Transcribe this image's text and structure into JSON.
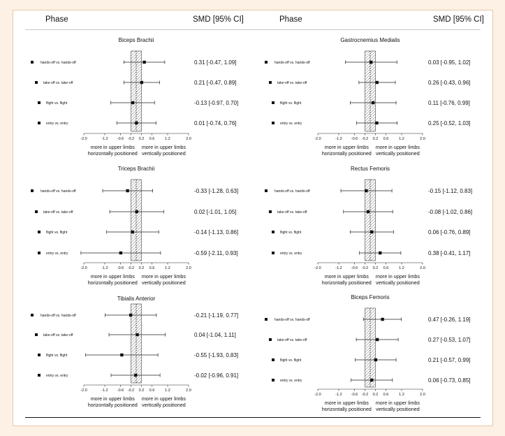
{
  "header": {
    "left_phase": "Phase",
    "left_smd": "SMD [95% CI]",
    "right_phase": "Phase",
    "right_smd": "SMD [95% CI]"
  },
  "axis": {
    "ticks": [
      "-2.0",
      "-1.2",
      "-0.6",
      "-0.2",
      "0.2",
      "0.6",
      "1.2",
      "2.0"
    ],
    "left_label": [
      "more in upper limbs",
      "horizontally positioned"
    ],
    "right_label": [
      "more in upper limbs",
      "vertically positioned"
    ]
  },
  "chart_data": [
    {
      "type": "forest",
      "title": "Biceps Brachii",
      "rows": [
        {
          "label": "hands-off vs. hands-off",
          "smd": 0.31,
          "lo": -0.47,
          "hi": 1.09,
          "text": "0.31 [-0.47, 1.09]"
        },
        {
          "label": "take-off vs. take-off",
          "smd": 0.21,
          "lo": -0.47,
          "hi": 0.89,
          "text": "0.21 [-0.47, 0.89]"
        },
        {
          "label": "flight vs. flight",
          "smd": -0.13,
          "lo": -0.97,
          "hi": 0.7,
          "text": "-0.13 [-0.97, 0.70]"
        },
        {
          "label": "entry vs. entry",
          "smd": 0.01,
          "lo": -0.74,
          "hi": 0.76,
          "text": "0.01 [-0.74, 0.76]"
        }
      ]
    },
    {
      "type": "forest",
      "title": "Gastrocnemius Medialis",
      "rows": [
        {
          "label": "hands-off vs. hands-off",
          "smd": 0.03,
          "lo": -0.95,
          "hi": 1.02,
          "text": "0.03 [-0.95, 1.02]"
        },
        {
          "label": "take-off vs. take-off",
          "smd": 0.26,
          "lo": -0.43,
          "hi": 0.96,
          "text": "0.26 [-0.43, 0.96]"
        },
        {
          "label": "flight vs. flight",
          "smd": 0.11,
          "lo": -0.76,
          "hi": 0.99,
          "text": "0.11 [-0.76, 0.99]"
        },
        {
          "label": "entry vs. entry",
          "smd": 0.25,
          "lo": -0.52,
          "hi": 1.03,
          "text": "0.25 [-0.52, 1.03]"
        }
      ]
    },
    {
      "type": "forest",
      "title": "Triceps Brachii",
      "rows": [
        {
          "label": "hands-off vs. hands-off",
          "smd": -0.33,
          "lo": -1.28,
          "hi": 0.63,
          "text": "-0.33 [-1.28, 0.63]"
        },
        {
          "label": "take-off vs. take-off",
          "smd": 0.02,
          "lo": -1.01,
          "hi": 1.05,
          "text": "0.02 [-1.01, 1.05]"
        },
        {
          "label": "flight vs. flight",
          "smd": -0.14,
          "lo": -1.13,
          "hi": 0.86,
          "text": "-0.14 [-1.13, 0.86]"
        },
        {
          "label": "entry vs. entry",
          "smd": -0.59,
          "lo": -2.11,
          "hi": 0.93,
          "text": "-0.59 [-2.11, 0.93]"
        }
      ]
    },
    {
      "type": "forest",
      "title": "Rectus Femoris",
      "rows": [
        {
          "label": "hands-off vs. hands-off",
          "smd": -0.15,
          "lo": -1.12,
          "hi": 0.83,
          "text": "-0.15 [-1.12, 0.83]"
        },
        {
          "label": "take-off vs. take-off",
          "smd": -0.08,
          "lo": -1.02,
          "hi": 0.86,
          "text": "-0.08 [-1.02, 0.86]"
        },
        {
          "label": "flight vs. flight",
          "smd": 0.06,
          "lo": -0.76,
          "hi": 0.89,
          "text": "0.06 [-0.76, 0.89]"
        },
        {
          "label": "entry vs. entry",
          "smd": 0.38,
          "lo": -0.41,
          "hi": 1.17,
          "text": "0.38 [-0.41, 1.17]"
        }
      ]
    },
    {
      "type": "forest",
      "title": "Tibialis Anterior",
      "rows": [
        {
          "label": "hands-off vs. hands-off",
          "smd": -0.21,
          "lo": -1.19,
          "hi": 0.77,
          "text": "-0.21 [-1.19, 0.77]"
        },
        {
          "label": "take-off vs. take-off",
          "smd": 0.04,
          "lo": -1.04,
          "hi": 1.11,
          "text": "0.04 [-1.04, 1.11]"
        },
        {
          "label": "flight vs. flight",
          "smd": -0.55,
          "lo": -1.93,
          "hi": 0.83,
          "text": "-0.55 [-1.93, 0.83]"
        },
        {
          "label": "entry vs. entry",
          "smd": -0.02,
          "lo": -0.96,
          "hi": 0.91,
          "text": "-0.02 [-0.96, 0.91]"
        }
      ]
    },
    {
      "type": "forest",
      "title": "Biceps Femoris",
      "rows": [
        {
          "label": "hands-off vs. hands-off",
          "smd": 0.47,
          "lo": -0.26,
          "hi": 1.19,
          "text": "0.47 [-0.26, 1.19]"
        },
        {
          "label": "take-off vs. take-off",
          "smd": 0.27,
          "lo": -0.53,
          "hi": 1.07,
          "text": "0.27 [-0.53, 1.07]"
        },
        {
          "label": "flight vs. flight",
          "smd": 0.21,
          "lo": -0.57,
          "hi": 0.99,
          "text": "0.21 [-0.57, 0.99]"
        },
        {
          "label": "entry vs. entry",
          "smd": 0.06,
          "lo": -0.73,
          "hi": 0.85,
          "text": "0.06 [-0.73, 0.85]"
        }
      ]
    }
  ]
}
